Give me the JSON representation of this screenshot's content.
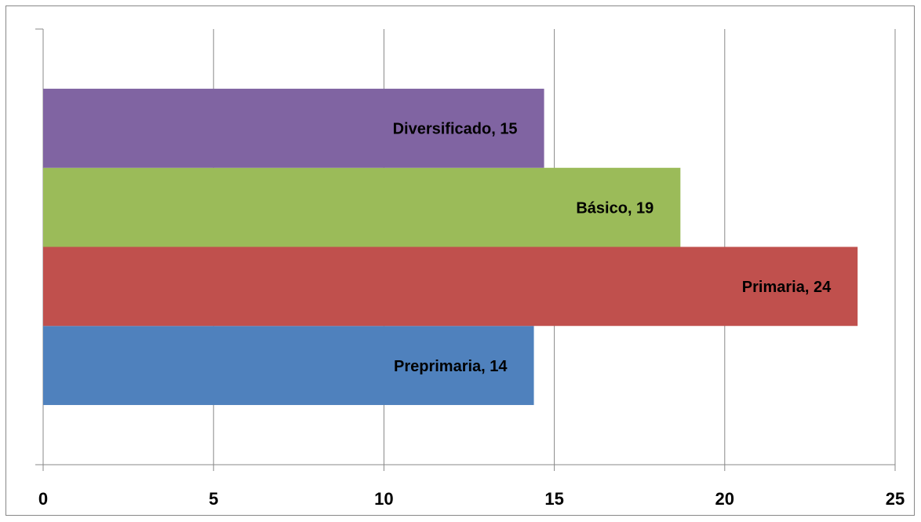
{
  "chart_data": {
    "type": "bar",
    "orientation": "horizontal",
    "categories": [
      null
    ],
    "series": [
      {
        "name": "Preprimaria",
        "color": "#4f81bd",
        "values": [
          14.4
        ],
        "value_labels": [
          "Preprimaria, 14"
        ]
      },
      {
        "name": "Primaria",
        "color": "#c0504d",
        "values": [
          23.9
        ],
        "value_labels": [
          "Primaria, 24"
        ]
      },
      {
        "name": "Básico",
        "color": "#9bbb59",
        "values": [
          18.7
        ],
        "value_labels": [
          "Básico, 19"
        ]
      },
      {
        "name": "Diversificado",
        "color": "#8064a2",
        "values": [
          14.7
        ],
        "value_labels": [
          "Diversificado, 15"
        ]
      }
    ],
    "xlim": [
      0,
      25
    ],
    "xticks": [
      0,
      5,
      10,
      15,
      20,
      25
    ],
    "grid": true
  }
}
